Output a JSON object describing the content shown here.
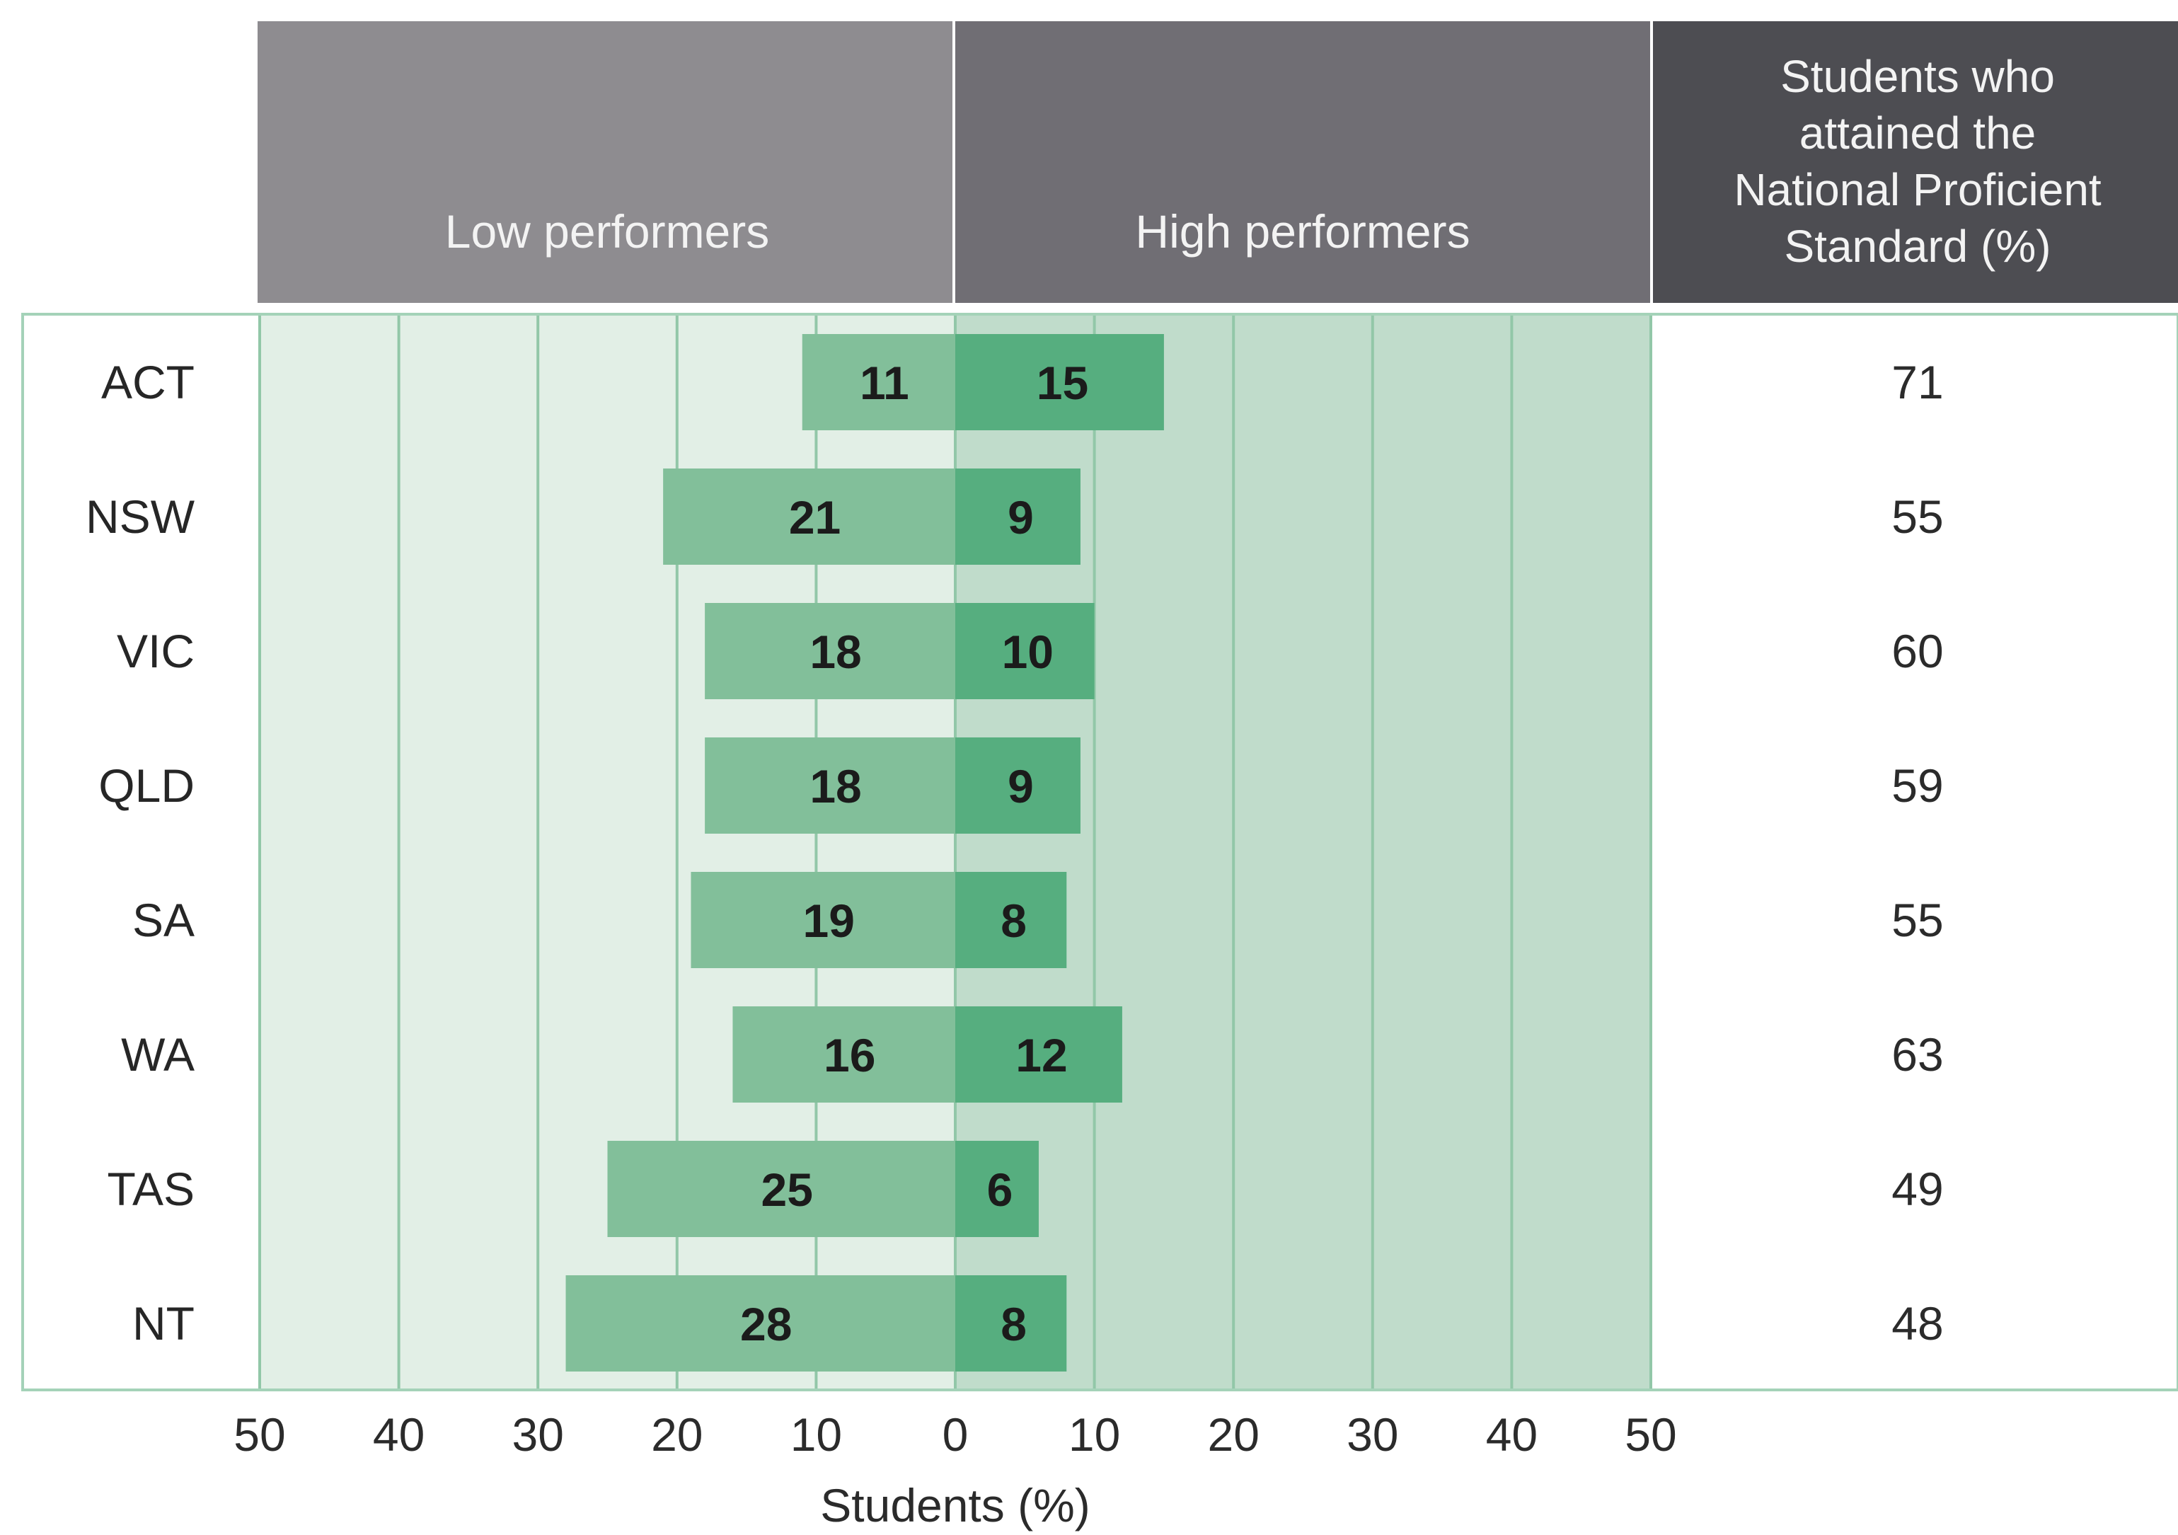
{
  "chart_data": {
    "type": "bar",
    "headers": {
      "left": "Low performers",
      "right": "High performers",
      "side_lines": [
        "Students who",
        "attained the",
        "National Proficient",
        "Standard (%)"
      ]
    },
    "categories": [
      "ACT",
      "NSW",
      "VIC",
      "QLD",
      "SA",
      "WA",
      "TAS",
      "NT"
    ],
    "series": [
      {
        "name": "Low performers",
        "values": [
          11,
          21,
          18,
          18,
          19,
          16,
          25,
          28
        ]
      },
      {
        "name": "High performers",
        "values": [
          15,
          9,
          10,
          9,
          8,
          12,
          6,
          8
        ]
      }
    ],
    "proficient": [
      71,
      55,
      60,
      59,
      55,
      63,
      49,
      48
    ],
    "xlim_left": [
      50,
      0
    ],
    "xlim_right": [
      0,
      50
    ],
    "ticks_left": [
      "50",
      "40",
      "30",
      "20",
      "10"
    ],
    "ticks_right": [
      "0",
      "10",
      "20",
      "30",
      "40",
      "50"
    ],
    "xlabel": "Students (%)",
    "grid": true,
    "colors": {
      "header_left": "#8e8c90",
      "header_right": "#706e74",
      "header_side": "#4d4d52",
      "panel_left_bg": "#e2efe6",
      "panel_right_bg": "#c0dccb",
      "bar_low": "#82bf9a",
      "bar_high": "#56ae7f",
      "grid": "#92c7a8",
      "frame": "#a4d2b8"
    }
  }
}
